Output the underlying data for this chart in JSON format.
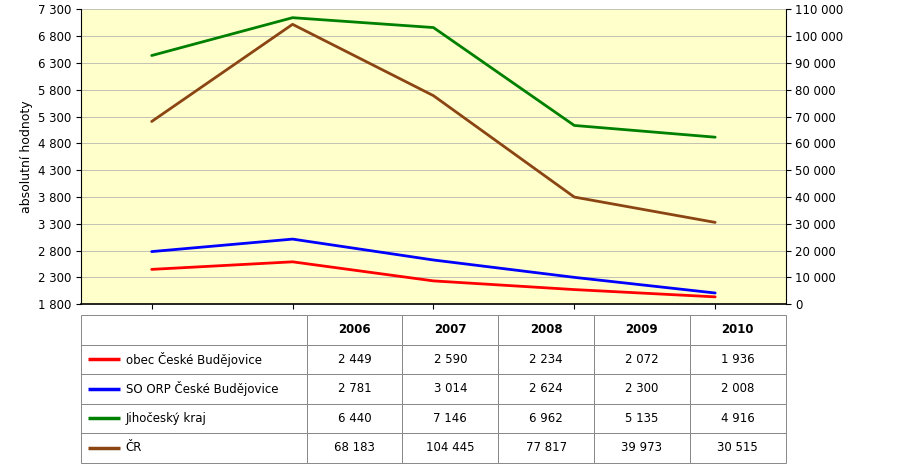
{
  "years": [
    2006,
    2007,
    2008,
    2009,
    2010
  ],
  "series": [
    {
      "label": "obec České Budějovice",
      "color": "#ff0000",
      "values": [
        2449,
        2590,
        2234,
        2072,
        1936
      ],
      "axis": "left"
    },
    {
      "label": "SO ORP České Budějovice",
      "color": "#0000ff",
      "values": [
        2781,
        3014,
        2624,
        2300,
        2008
      ],
      "axis": "left"
    },
    {
      "label": "Jihočeský kraj",
      "color": "#008000",
      "values": [
        6440,
        7146,
        6962,
        5135,
        4916
      ],
      "axis": "left"
    },
    {
      "label": "ČR",
      "color": "#8B4513",
      "values": [
        68183,
        104445,
        77817,
        39973,
        30515
      ],
      "axis": "right"
    }
  ],
  "left_ylabel": "absolutní hodnoty",
  "left_yticks": [
    1800,
    2300,
    2800,
    3300,
    3800,
    4300,
    4800,
    5300,
    5800,
    6300,
    6800,
    7300
  ],
  "right_yticks": [
    0,
    10000,
    20000,
    30000,
    40000,
    50000,
    60000,
    70000,
    80000,
    90000,
    100000,
    110000
  ],
  "right_yticklabels": [
    "0",
    "10 000",
    "20 000",
    "30 000",
    "40 000",
    "50 000",
    "60 000",
    "70 000",
    "80 000",
    "90 000",
    "100 000",
    "110 000"
  ],
  "left_yticklabels": [
    "1 800",
    "2 300",
    "2 800",
    "3 300",
    "3 800",
    "4 300",
    "4 800",
    "5 300",
    "5 800",
    "6 300",
    "6 800",
    "7 300"
  ],
  "ylim_left": [
    1800,
    7300
  ],
  "ylim_right": [
    0,
    110000
  ],
  "background_color": "#ffffcc",
  "table_data": [
    [
      "obec České Budějovice",
      "2 449",
      "2 590",
      "2 234",
      "2 072",
      "1 936"
    ],
    [
      "SO ORP České Budějovice",
      "2 781",
      "3 014",
      "2 624",
      "2 300",
      "2 008"
    ],
    [
      "Jihočeský kraj",
      "6 440",
      "7 146",
      "6 962",
      "5 135",
      "4 916"
    ],
    [
      "ČR",
      "68 183",
      "104 445",
      "77 817",
      "39 973",
      "30 515"
    ]
  ],
  "table_colors": [
    "#ff0000",
    "#0000ff",
    "#008000",
    "#8B4513"
  ],
  "line_width": 2.0,
  "grid_color": "#aaaaaa",
  "font_size": 8.5,
  "table_font_size": 8.5
}
